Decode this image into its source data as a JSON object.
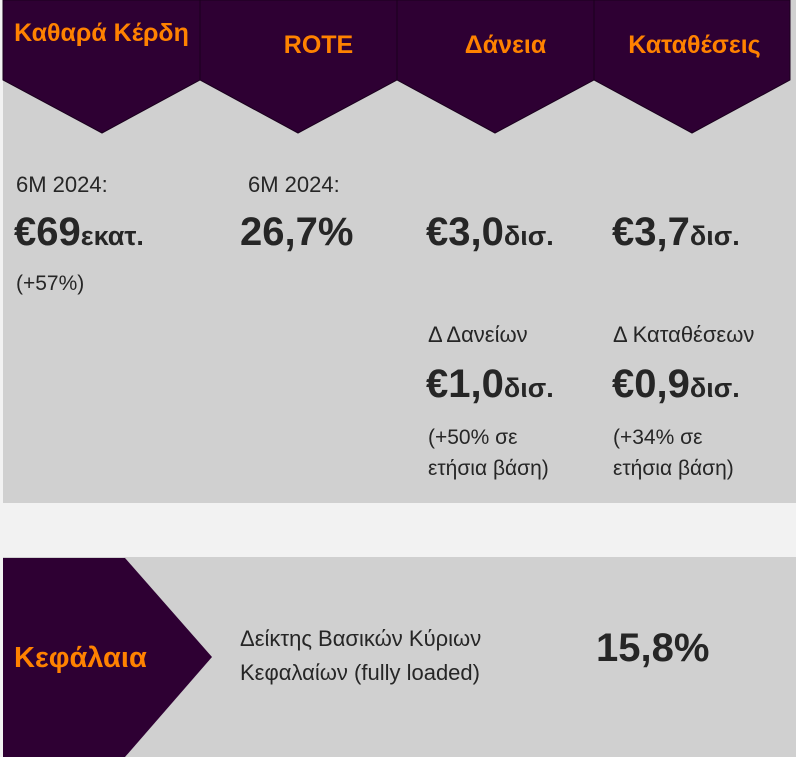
{
  "colors": {
    "purple": "#2e0033",
    "orange": "#ff8200",
    "panel": "#d0d0d0",
    "gap": "#f2f2f2"
  },
  "columns": [
    {
      "header": "Καθαρά Κέρδη",
      "label": "6M 2024:",
      "value": "€69",
      "unit": "εκατ.",
      "note": "(+57%)"
    },
    {
      "header": "ROTE",
      "label": "6M 2024:",
      "value": "26,7%"
    },
    {
      "header": "Δάνεια",
      "value": "€3,0",
      "unit": "δισ.",
      "delta_label": "Δ Δανείων",
      "delta_value": "€1,0",
      "delta_unit": "δισ.",
      "delta_note_1": "(+50% σε",
      "delta_note_2": "ετήσια βάση)"
    },
    {
      "header": "Καταθέσεις",
      "value": "€3,7",
      "unit": "δισ.",
      "delta_label": "Δ Καταθέσεων",
      "delta_value": "€0,9",
      "delta_unit": "δισ.",
      "delta_note_1": "(+34% σε",
      "delta_note_2": "ετήσια βάση)"
    }
  ],
  "capital": {
    "header": "Κεφάλαια",
    "label_1": "Δείκτης Βασικών Κύριων",
    "label_2": "Κεφαλαίων (fully loaded)",
    "value": "15,8%"
  }
}
